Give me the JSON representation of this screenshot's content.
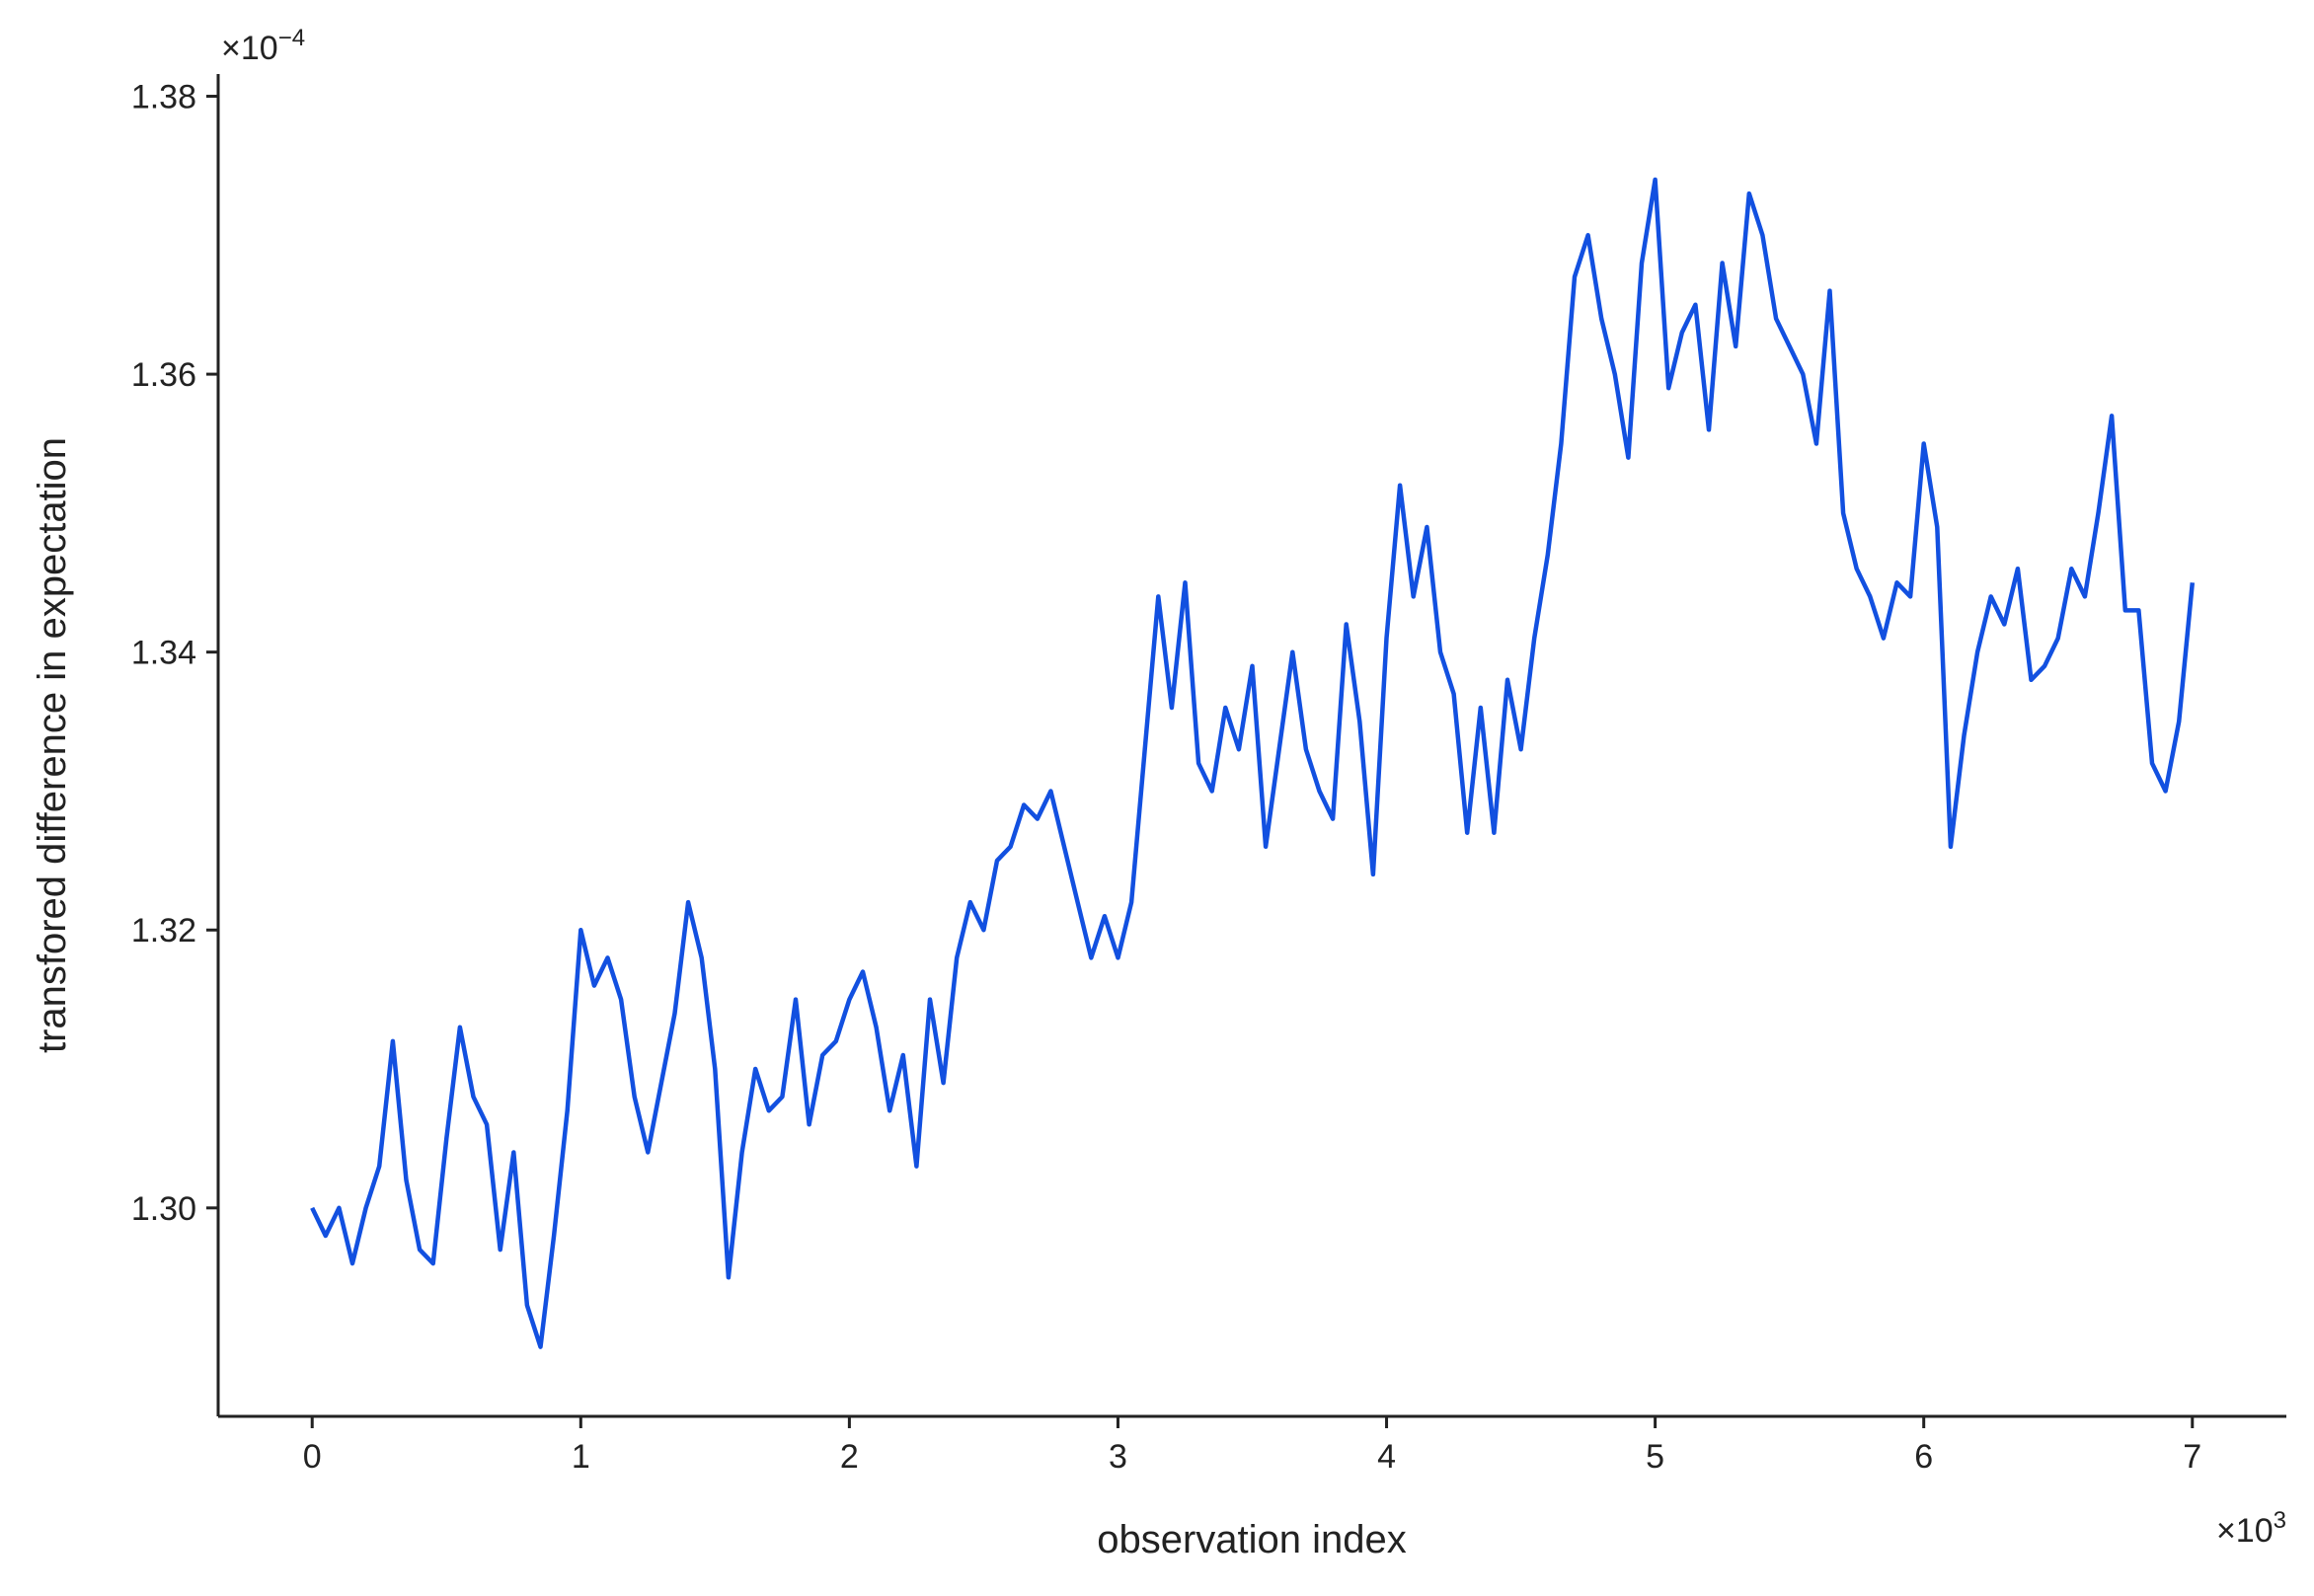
{
  "chart_data": {
    "type": "line",
    "xlabel": "observation index",
    "ylabel": "transfored difference in expectation",
    "x_offset_text": {
      "base": "×10",
      "exponent": "3"
    },
    "y_offset_text": {
      "base": "×10",
      "exponent": "−4"
    },
    "xlim": [
      -0.35,
      7.35
    ],
    "ylim": [
      1.285,
      1.3816
    ],
    "xticks": [
      0,
      1,
      2,
      3,
      4,
      5,
      6,
      7
    ],
    "yticks": [
      {
        "value": 1.3,
        "label": "1.30"
      },
      {
        "value": 1.32,
        "label": "1.32"
      },
      {
        "value": 1.34,
        "label": "1.34"
      },
      {
        "value": 1.36,
        "label": "1.36"
      },
      {
        "value": 1.38,
        "label": "1.38"
      }
    ],
    "grid": false,
    "series": [
      {
        "color": "#1250e0",
        "x": [
          0,
          0.05,
          0.1,
          0.15,
          0.2,
          0.25,
          0.3,
          0.35,
          0.4,
          0.45,
          0.5,
          0.55,
          0.6,
          0.65,
          0.7,
          0.75,
          0.8,
          0.85,
          0.9,
          0.95,
          1,
          1.05,
          1.1,
          1.15,
          1.2,
          1.25,
          1.3,
          1.35,
          1.4,
          1.45,
          1.5,
          1.55,
          1.6,
          1.65,
          1.7,
          1.75,
          1.8,
          1.85,
          1.9,
          1.95,
          2,
          2.05,
          2.1,
          2.15,
          2.2,
          2.25,
          2.3,
          2.35,
          2.4,
          2.45,
          2.5,
          2.55,
          2.6,
          2.65,
          2.7,
          2.75,
          2.8,
          2.85,
          2.9,
          2.95,
          3,
          3.05,
          3.1,
          3.15,
          3.2,
          3.25,
          3.3,
          3.35,
          3.4,
          3.45,
          3.5,
          3.55,
          3.6,
          3.65,
          3.7,
          3.75,
          3.8,
          3.85,
          3.9,
          3.95,
          4,
          4.05,
          4.1,
          4.15,
          4.2,
          4.25,
          4.3,
          4.35,
          4.4,
          4.45,
          4.5,
          4.55,
          4.6,
          4.65,
          4.7,
          4.75,
          4.8,
          4.85,
          4.9,
          4.95,
          5,
          5.05,
          5.1,
          5.15,
          5.2,
          5.25,
          5.3,
          5.35,
          5.4,
          5.45,
          5.5,
          5.55,
          5.6,
          5.65,
          5.7,
          5.75,
          5.8,
          5.85,
          5.9,
          5.95,
          6,
          6.05,
          6.1,
          6.15,
          6.2,
          6.25,
          6.3,
          6.35,
          6.4,
          6.45,
          6.5,
          6.55,
          6.6,
          6.65,
          6.7,
          6.75,
          6.8,
          6.85,
          6.9,
          6.95,
          7
        ],
        "values": [
          1.3,
          1.298,
          1.3,
          1.296,
          1.3,
          1.303,
          1.312,
          1.302,
          1.297,
          1.296,
          1.305,
          1.313,
          1.308,
          1.306,
          1.297,
          1.304,
          1.293,
          1.29,
          1.298,
          1.307,
          1.32,
          1.316,
          1.318,
          1.315,
          1.308,
          1.304,
          1.309,
          1.314,
          1.322,
          1.318,
          1.31,
          1.295,
          1.304,
          1.31,
          1.307,
          1.308,
          1.315,
          1.306,
          1.311,
          1.312,
          1.315,
          1.317,
          1.313,
          1.307,
          1.311,
          1.303,
          1.315,
          1.309,
          1.318,
          1.322,
          1.32,
          1.325,
          1.326,
          1.329,
          1.328,
          1.33,
          1.326,
          1.322,
          1.318,
          1.321,
          1.318,
          1.322,
          1.333,
          1.344,
          1.336,
          1.345,
          1.332,
          1.33,
          1.336,
          1.333,
          1.339,
          1.326,
          1.333,
          1.34,
          1.333,
          1.33,
          1.328,
          1.342,
          1.335,
          1.324,
          1.341,
          1.352,
          1.344,
          1.349,
          1.34,
          1.337,
          1.327,
          1.336,
          1.327,
          1.338,
          1.333,
          1.341,
          1.347,
          1.355,
          1.367,
          1.37,
          1.364,
          1.36,
          1.354,
          1.368,
          1.374,
          1.359,
          1.363,
          1.365,
          1.356,
          1.368,
          1.362,
          1.373,
          1.37,
          1.364,
          1.362,
          1.36,
          1.355,
          1.366,
          1.35,
          1.346,
          1.344,
          1.341,
          1.345,
          1.344,
          1.355,
          1.349,
          1.326,
          1.334,
          1.34,
          1.344,
          1.342,
          1.346,
          1.338,
          1.339,
          1.341,
          1.346,
          1.344,
          1.35,
          1.357,
          1.343,
          1.343,
          1.332,
          1.33,
          1.335,
          1.345
        ]
      }
    ]
  }
}
